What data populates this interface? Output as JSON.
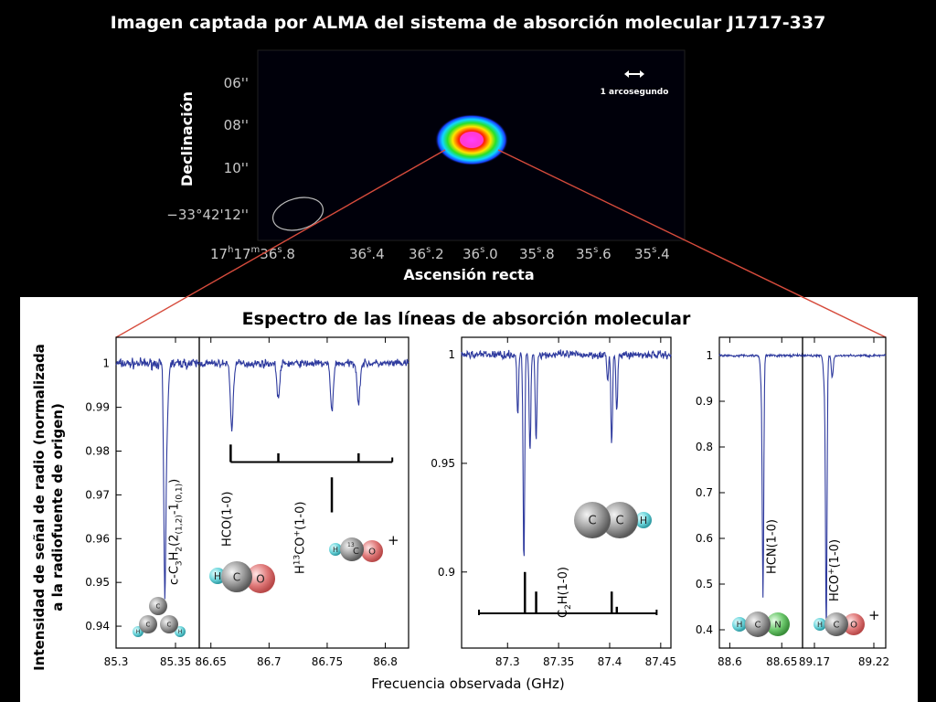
{
  "title": "Imagen captada por ALMA del sistema de absorción molecular J1717-337",
  "image_panel": {
    "ylabel": "Declinación",
    "xlabel": "Ascensión recta",
    "y_ticks": [
      "06''",
      "08''",
      "10''",
      "−33°42'12''"
    ],
    "x_tick_first": {
      "main": "17",
      "h": "h",
      "mid": "17",
      "m": "m",
      "sec": "36",
      "s": "s",
      "frac": ".8"
    },
    "x_ticks": [
      {
        "sec": "36",
        "s": "s",
        "frac": ".4"
      },
      {
        "sec": "36",
        "s": "s",
        "frac": ".2"
      },
      {
        "sec": "36",
        "s": "s",
        "frac": ".0"
      },
      {
        "sec": "35",
        "s": "s",
        "frac": ".8"
      },
      {
        "sec": "35",
        "s": "s",
        "frac": ".6"
      },
      {
        "sec": "35",
        "s": "s",
        "frac": ".4"
      }
    ],
    "scale_bar_label": "1 arcosegundo"
  },
  "spectrum": {
    "title": "Espectro de las líneas de absorción molecular",
    "ylabel_line1": "Intensidad de señal de radio (normalizada",
    "ylabel_line2": "a la radiofuente de origen)",
    "xlabel": "Frecuencia observada (GHz)"
  },
  "chart_data": [
    {
      "type": "line",
      "name": "c-C3H2",
      "xlim": [
        85.3,
        85.37
      ],
      "ylim": [
        0.935,
        1.006
      ],
      "x_ticks": [
        85.3,
        85.35
      ],
      "x_tick_labels": [
        "85.3",
        "85.35"
      ],
      "y_ticks": [
        1,
        0.99,
        0.98,
        0.97,
        0.96,
        0.95,
        0.94
      ],
      "y_tick_labels": [
        "1",
        "0.99",
        "0.98",
        "0.97",
        "0.96",
        "0.95",
        "0.94"
      ],
      "lines": [
        {
          "x": 85.341,
          "depth": 0.052,
          "width": 0.0009
        },
        {
          "x": 85.343,
          "depth": 0.012,
          "width": 0.001
        }
      ],
      "noise": 0.0017,
      "label": {
        "pre": "c-C",
        "s1": "3",
        "mid": "H",
        "s2": "2",
        "post1": "(2",
        "s3": "(1,2)",
        "post2": "-1",
        "s4": "(0,1)",
        "post3": ")"
      }
    },
    {
      "type": "line",
      "name": "HCO / H13CO+",
      "xlim": [
        86.64,
        86.82
      ],
      "ylim": [
        0.935,
        1.006
      ],
      "x_ticks": [
        86.65,
        86.7,
        86.75,
        86.8
      ],
      "x_tick_labels": [
        "86.65",
        "86.7",
        "86.75",
        "86.8"
      ],
      "lines": [
        {
          "x": 86.668,
          "depth": 0.015,
          "width": 0.0012
        },
        {
          "x": 86.708,
          "depth": 0.008,
          "width": 0.0012
        },
        {
          "x": 86.754,
          "depth": 0.011,
          "width": 0.0012
        },
        {
          "x": 86.777,
          "depth": 0.009,
          "width": 0.0012
        }
      ],
      "noise": 0.0013,
      "hco_ticks": [
        {
          "x": 86.667,
          "h": 0.004
        },
        {
          "x": 86.708,
          "h": 0.002
        },
        {
          "x": 86.777,
          "h": 0.002
        }
      ],
      "hco_bar": [
        86.667,
        86.806
      ],
      "h13co_mark": {
        "x": 86.754,
        "top": 0.974,
        "bottom": 0.966
      },
      "label_hco": "HCO(1-0)",
      "label_h13": {
        "pre": "H",
        "s1": "13",
        "mid": "CO",
        "s2": "+",
        "post": "(1-0)"
      }
    },
    {
      "type": "line",
      "name": "C2H",
      "xlim": [
        87.255,
        87.46
      ],
      "ylim": [
        0.865,
        1.008
      ],
      "x_ticks": [
        87.3,
        87.35,
        87.4,
        87.45
      ],
      "x_tick_labels": [
        "87.3",
        "87.35",
        "87.4",
        "87.45"
      ],
      "y_ticks": [
        1,
        0.95,
        0.9
      ],
      "y_tick_labels": [
        "1",
        "0.95",
        "0.9"
      ],
      "lines": [
        {
          "x": 87.316,
          "depth": 0.095,
          "width": 0.0008
        },
        {
          "x": 87.31,
          "depth": 0.028,
          "width": 0.0008
        },
        {
          "x": 87.322,
          "depth": 0.045,
          "width": 0.0008
        },
        {
          "x": 87.328,
          "depth": 0.04,
          "width": 0.0008
        },
        {
          "x": 87.402,
          "depth": 0.042,
          "width": 0.0008
        },
        {
          "x": 87.407,
          "depth": 0.028,
          "width": 0.0008
        },
        {
          "x": 87.398,
          "depth": 0.012,
          "width": 0.0008
        }
      ],
      "noise": 0.0028,
      "bar": [
        87.272,
        87.446
      ],
      "bar_y": 0.881,
      "ticks": [
        {
          "x": 87.317,
          "top": 0.9
        },
        {
          "x": 87.328,
          "top": 0.891
        },
        {
          "x": 87.402,
          "top": 0.891
        },
        {
          "x": 87.407,
          "top": 0.884
        }
      ],
      "label": {
        "pre": "C",
        "s1": "2",
        "post": "H(1-0)"
      }
    },
    {
      "type": "line",
      "name": "HCN",
      "xlim": [
        88.59,
        88.67
      ],
      "ylim": [
        0.36,
        1.04
      ],
      "x_ticks": [
        88.6,
        88.65
      ],
      "x_tick_labels": [
        "88.6",
        "88.65"
      ],
      "y_ticks": [
        1,
        0.9,
        0.8,
        0.7,
        0.6,
        0.5,
        0.4
      ],
      "y_tick_labels": [
        "1",
        "0.9",
        "0.8",
        "0.7",
        "0.6",
        "0.5",
        "0.4"
      ],
      "lines": [
        {
          "x": 88.632,
          "depth": 0.47,
          "width": 0.0007
        },
        {
          "x": 88.631,
          "depth": 0.08,
          "width": 0.0012
        }
      ],
      "noise": 0.004,
      "label": "HCN(1-0)"
    },
    {
      "type": "line",
      "name": "HCO+",
      "xlim": [
        89.16,
        89.23
      ],
      "ylim": [
        0.36,
        1.04
      ],
      "x_ticks": [
        89.17,
        89.22
      ],
      "x_tick_labels": [
        "89.17",
        "89.22"
      ],
      "lines": [
        {
          "x": 89.18,
          "depth": 0.55,
          "width": 0.0006
        },
        {
          "x": 89.179,
          "depth": 0.09,
          "width": 0.0011
        },
        {
          "x": 89.185,
          "depth": 0.05,
          "width": 0.0008
        }
      ],
      "noise": 0.004,
      "label": {
        "pre": "HCO",
        "sup": "+",
        "post": "(1-0)"
      }
    }
  ],
  "molecules": {
    "c3h2": [
      "C",
      "C",
      "C",
      "H",
      "H"
    ],
    "hco": [
      "H",
      "C",
      "O"
    ],
    "h13co": [
      "H",
      "13",
      "C",
      "O",
      "+"
    ],
    "c2h": [
      "C",
      "C",
      "H"
    ],
    "hcn": [
      "H",
      "C",
      "N"
    ],
    "hcop": [
      "H",
      "C",
      "O",
      "+"
    ]
  },
  "colors": {
    "spectrum": "#2e3a9e",
    "connector": "#d64b3c"
  }
}
